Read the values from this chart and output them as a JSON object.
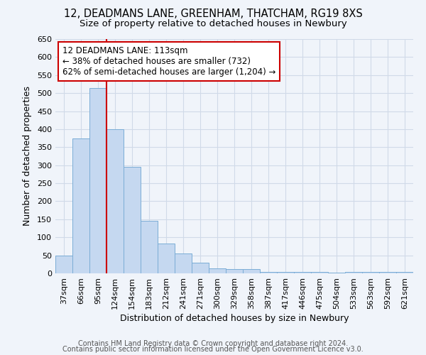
{
  "title1": "12, DEADMANS LANE, GREENHAM, THATCHAM, RG19 8XS",
  "title2": "Size of property relative to detached houses in Newbury",
  "xlabel": "Distribution of detached houses by size in Newbury",
  "ylabel": "Number of detached properties",
  "categories": [
    "37sqm",
    "66sqm",
    "95sqm",
    "124sqm",
    "154sqm",
    "183sqm",
    "212sqm",
    "241sqm",
    "271sqm",
    "300sqm",
    "329sqm",
    "358sqm",
    "387sqm",
    "417sqm",
    "446sqm",
    "475sqm",
    "504sqm",
    "533sqm",
    "563sqm",
    "592sqm",
    "621sqm"
  ],
  "values": [
    50,
    375,
    515,
    400,
    295,
    145,
    83,
    55,
    30,
    13,
    11,
    12,
    4,
    4,
    4,
    4,
    2,
    3,
    3,
    3,
    3
  ],
  "bar_color": "#c5d8f0",
  "bar_edge_color": "#7badd6",
  "redline_x": 2.5,
  "annotation_text": "12 DEADMANS LANE: 113sqm\n← 38% of detached houses are smaller (732)\n62% of semi-detached houses are larger (1,204) →",
  "annotation_box_color": "#ffffff",
  "annotation_box_edge_color": "#cc0000",
  "redline_color": "#cc0000",
  "ylim": [
    0,
    650
  ],
  "yticks": [
    0,
    50,
    100,
    150,
    200,
    250,
    300,
    350,
    400,
    450,
    500,
    550,
    600,
    650
  ],
  "footer1": "Contains HM Land Registry data © Crown copyright and database right 2024.",
  "footer2": "Contains public sector information licensed under the Open Government Licence v3.0.",
  "bg_color": "#f0f4fa",
  "plot_bg_color": "#f0f4fa",
  "grid_color": "#d0dae8",
  "title_fontsize": 10.5,
  "subtitle_fontsize": 9.5,
  "axis_label_fontsize": 9,
  "tick_fontsize": 8,
  "footer_fontsize": 7
}
